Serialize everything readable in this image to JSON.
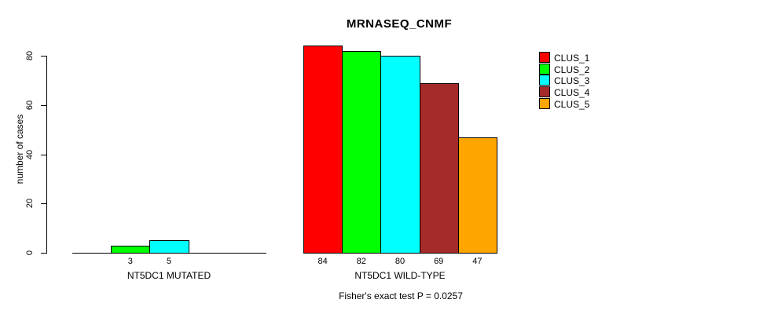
{
  "chart_data": {
    "type": "bar",
    "title": "MRNASEQ_CNMF",
    "ylabel": "number of cases",
    "xlabel": "",
    "ylim": [
      0,
      80
    ],
    "yticks": [
      0,
      20,
      40,
      60,
      80
    ],
    "grid": false,
    "legend_position": "right",
    "clusters": [
      {
        "name": "CLUS_1",
        "color": "#FF0000"
      },
      {
        "name": "CLUS_2",
        "color": "#00FF00"
      },
      {
        "name": "CLUS_3",
        "color": "#00FFFF"
      },
      {
        "name": "CLUS_4",
        "color": "#A52A2A"
      },
      {
        "name": "CLUS_5",
        "color": "#FFA500"
      }
    ],
    "groups": [
      {
        "label": "NT5DC1 MUTATED",
        "values": [
          0,
          3,
          5,
          0,
          0
        ]
      },
      {
        "label": "NT5DC1 WILD-TYPE",
        "values": [
          84,
          82,
          80,
          69,
          47
        ]
      }
    ],
    "annotation": "Fisher's exact test P = 0.0257"
  }
}
